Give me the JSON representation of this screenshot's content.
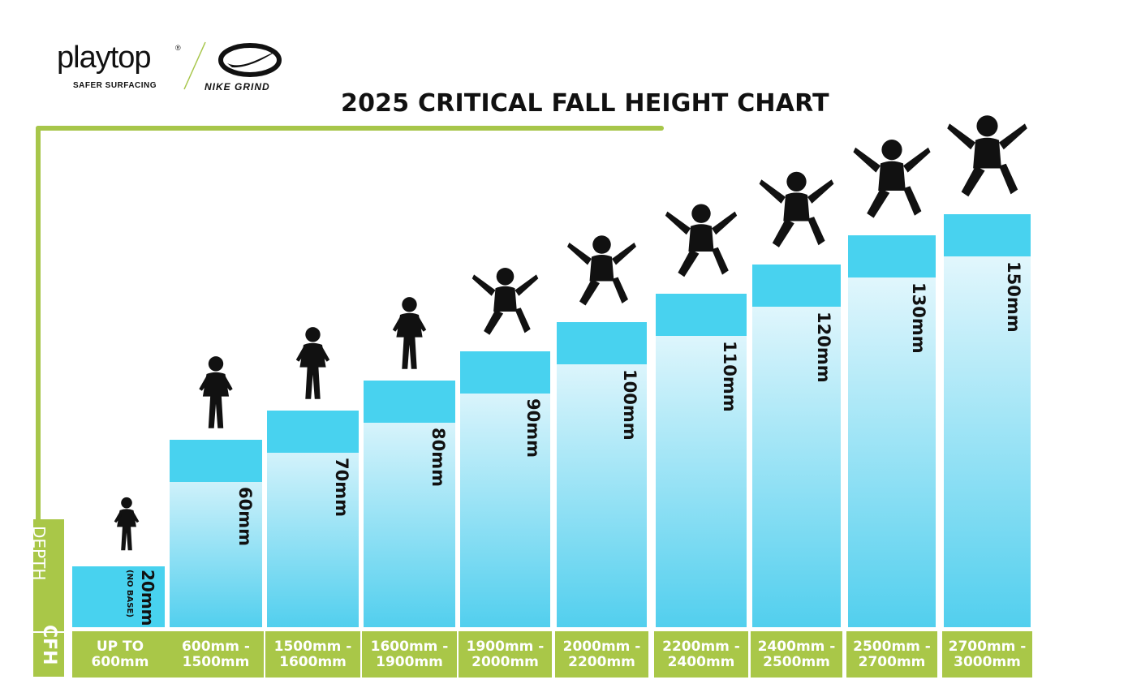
{
  "logo": {
    "name": "playtop",
    "reg": "®",
    "subtitle": "SAFER SURFACING",
    "partner": "NIKE GRIND"
  },
  "side": {
    "depth_label": "DEPTH",
    "cfh_label": "CFH"
  },
  "chart_data": {
    "type": "bar",
    "title": "2025 CRITICAL FALL HEIGHT CHART",
    "xlabel": "CFH",
    "ylabel": "DEPTH",
    "categories": [
      "UP TO\n600mm",
      "600mm -\n1500mm",
      "1500mm -\n1600mm",
      "1600mm -\n1900mm",
      "1900mm -\n2000mm",
      "2000mm -\n2200mm",
      "2200mm -\n2400mm",
      "2400mm -\n2500mm",
      "2500mm -\n2700mm",
      "2700mm -\n3000mm"
    ],
    "values": [
      20,
      60,
      70,
      80,
      90,
      100,
      110,
      120,
      130,
      150
    ],
    "value_labels": [
      "20mm",
      "60mm",
      "70mm",
      "80mm",
      "90mm",
      "100mm",
      "110mm",
      "120mm",
      "130mm",
      "150mm"
    ],
    "notes": [
      "(NO BASE)",
      "",
      "",
      "",
      "",
      "",
      "",
      "",
      "",
      ""
    ],
    "colors": {
      "cap": "#48d2ef",
      "bar_top": "#f2fbfe",
      "bar_bottom": "#52cfee",
      "green": "#a9c748"
    }
  }
}
